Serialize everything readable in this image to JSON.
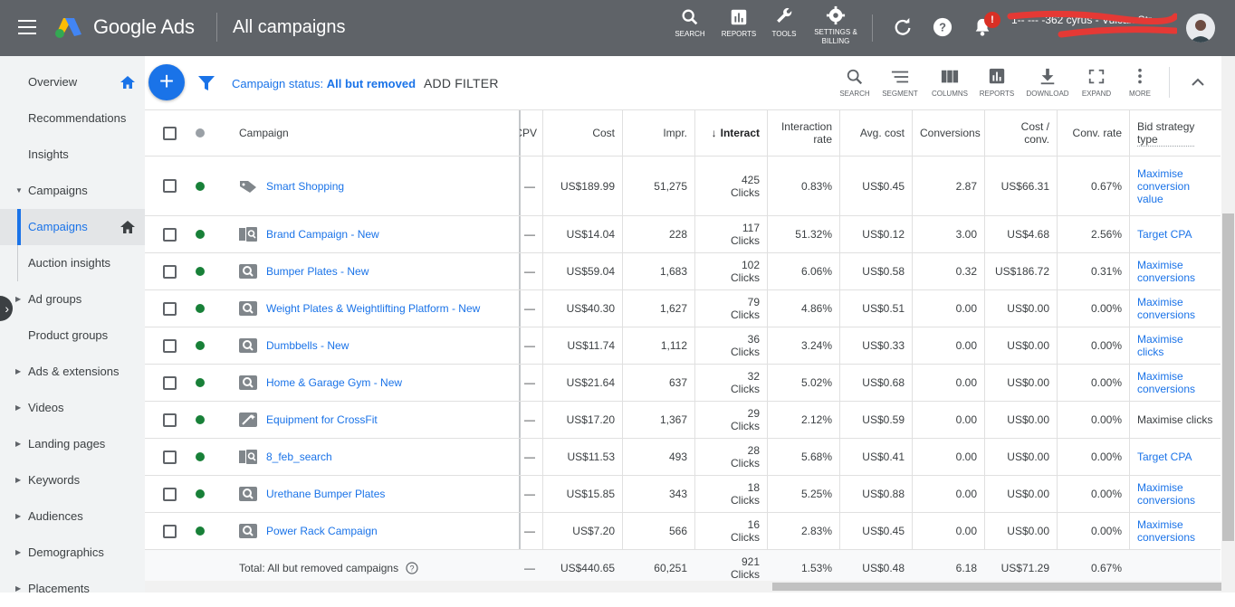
{
  "header": {
    "brand": "Google Ads",
    "page_title": "All campaigns",
    "tools": [
      {
        "label": "SEARCH",
        "icon": "search-icon"
      },
      {
        "label": "REPORTS",
        "icon": "reports-icon"
      },
      {
        "label": "TOOLS",
        "icon": "wrench-icon"
      },
      {
        "label": "SETTINGS & BILLING",
        "label_l1": "SETTINGS &",
        "label_l2": "BILLING",
        "icon": "gear-icon"
      }
    ],
    "notification_badge": "!",
    "account": "1-- --- -362 cyrus - Vulcan Str..."
  },
  "sidebar": {
    "items": [
      {
        "label": "Overview"
      },
      {
        "label": "Recommendations"
      },
      {
        "label": "Insights"
      },
      {
        "label": "Campaigns"
      },
      {
        "label": "Campaigns"
      },
      {
        "label": "Auction insights"
      },
      {
        "label": "Ad groups"
      },
      {
        "label": "Product groups"
      },
      {
        "label": "Ads & extensions"
      },
      {
        "label": "Videos"
      },
      {
        "label": "Landing pages"
      },
      {
        "label": "Keywords"
      },
      {
        "label": "Audiences"
      },
      {
        "label": "Demographics"
      },
      {
        "label": "Placements"
      }
    ]
  },
  "filter": {
    "status_prefix": "Campaign status: ",
    "status_value": "All but removed",
    "add_filter": "ADD FILTER",
    "tools": [
      "SEARCH",
      "SEGMENT",
      "COLUMNS",
      "REPORTS",
      "DOWNLOAD",
      "EXPAND",
      "MORE"
    ]
  },
  "table": {
    "headers": {
      "campaign": "Campaign",
      "cpv": "CPV",
      "cost": "Cost",
      "impr": "Impr.",
      "interactions": "Interact",
      "interaction_rate_l1": "Interaction",
      "interaction_rate_l2": "rate",
      "avg_cost": "Avg. cost",
      "conversions": "Conversions",
      "cost_conv_l1": "Cost /",
      "cost_conv_l2": "conv.",
      "conv_rate": "Conv. rate",
      "bid_l1": "Bid strategy",
      "bid_l2": "type"
    },
    "rows": [
      {
        "name": "Smart Shopping",
        "type": "shopping",
        "cpv": "—",
        "cost": "US$189.99",
        "impr": "51,275",
        "inter": "425",
        "inter_unit": "Clicks",
        "rate": "0.83%",
        "avg": "US$0.45",
        "conv": "2.87",
        "cpc": "US$66.31",
        "crate": "0.67%",
        "bid": [
          "Maximise",
          "conversion",
          "value"
        ],
        "bid_link": true
      },
      {
        "name": "Brand Campaign - New",
        "type": "search-display",
        "cpv": "—",
        "cost": "US$14.04",
        "impr": "228",
        "inter": "117",
        "inter_unit": "Clicks",
        "rate": "51.32%",
        "avg": "US$0.12",
        "conv": "3.00",
        "cpc": "US$4.68",
        "crate": "2.56%",
        "bid": [
          "Target CPA"
        ],
        "bid_link": true
      },
      {
        "name": "Bumper Plates - New",
        "type": "search",
        "cpv": "—",
        "cost": "US$59.04",
        "impr": "1,683",
        "inter": "102",
        "inter_unit": "Clicks",
        "rate": "6.06%",
        "avg": "US$0.58",
        "conv": "0.32",
        "cpc": "US$186.72",
        "crate": "0.31%",
        "bid": [
          "Maximise",
          "conversions"
        ],
        "bid_link": true
      },
      {
        "name": "Weight Plates & Weightlifting Platform - New",
        "type": "search",
        "cpv": "—",
        "cost": "US$40.30",
        "impr": "1,627",
        "inter": "79",
        "inter_unit": "Clicks",
        "rate": "4.86%",
        "avg": "US$0.51",
        "conv": "0.00",
        "cpc": "US$0.00",
        "crate": "0.00%",
        "bid": [
          "Maximise",
          "conversions"
        ],
        "bid_link": true
      },
      {
        "name": "Dumbbells - New",
        "type": "search",
        "cpv": "—",
        "cost": "US$11.74",
        "impr": "1,112",
        "inter": "36",
        "inter_unit": "Clicks",
        "rate": "3.24%",
        "avg": "US$0.33",
        "conv": "0.00",
        "cpc": "US$0.00",
        "crate": "0.00%",
        "bid": [
          "Maximise",
          "clicks"
        ],
        "bid_link": true
      },
      {
        "name": "Home & Garage Gym - New",
        "type": "search",
        "cpv": "—",
        "cost": "US$21.64",
        "impr": "637",
        "inter": "32",
        "inter_unit": "Clicks",
        "rate": "5.02%",
        "avg": "US$0.68",
        "conv": "0.00",
        "cpc": "US$0.00",
        "crate": "0.00%",
        "bid": [
          "Maximise",
          "conversions"
        ],
        "bid_link": true
      },
      {
        "name": "Equipment for CrossFit",
        "type": "smart",
        "cpv": "—",
        "cost": "US$17.20",
        "impr": "1,367",
        "inter": "29",
        "inter_unit": "Clicks",
        "rate": "2.12%",
        "avg": "US$0.59",
        "conv": "0.00",
        "cpc": "US$0.00",
        "crate": "0.00%",
        "bid": [
          "Maximise clicks"
        ],
        "bid_link": false
      },
      {
        "name": "8_feb_search",
        "type": "search-display",
        "cpv": "—",
        "cost": "US$11.53",
        "impr": "493",
        "inter": "28",
        "inter_unit": "Clicks",
        "rate": "5.68%",
        "avg": "US$0.41",
        "conv": "0.00",
        "cpc": "US$0.00",
        "crate": "0.00%",
        "bid": [
          "Target CPA"
        ],
        "bid_link": true
      },
      {
        "name": "Urethane Bumper Plates",
        "type": "search",
        "cpv": "—",
        "cost": "US$15.85",
        "impr": "343",
        "inter": "18",
        "inter_unit": "Clicks",
        "rate": "5.25%",
        "avg": "US$0.88",
        "conv": "0.00",
        "cpc": "US$0.00",
        "crate": "0.00%",
        "bid": [
          "Maximise",
          "conversions"
        ],
        "bid_link": true
      },
      {
        "name": "Power Rack Campaign",
        "type": "search",
        "cpv": "—",
        "cost": "US$7.20",
        "impr": "566",
        "inter": "16",
        "inter_unit": "Clicks",
        "rate": "2.83%",
        "avg": "US$0.45",
        "conv": "0.00",
        "cpc": "US$0.00",
        "crate": "0.00%",
        "bid": [
          "Maximise",
          "conversions"
        ],
        "bid_link": true
      }
    ],
    "total": {
      "label": "Total: All but removed campaigns",
      "cpv": "—",
      "cost": "US$440.65",
      "impr": "60,251",
      "inter": "921",
      "inter_unit": "Clicks",
      "rate": "1.53%",
      "avg": "US$0.48",
      "conv": "6.18",
      "cpc": "US$71.29",
      "crate": "0.67%"
    }
  },
  "colors": {
    "topbar": "#5f6368",
    "link": "#1a73e8",
    "enabled": "#188038",
    "sidebar": "#f1f3f4"
  }
}
